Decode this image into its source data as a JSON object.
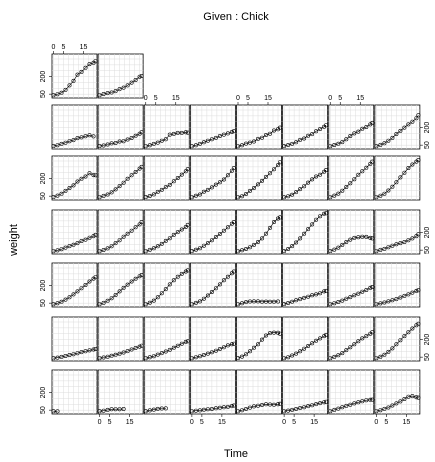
{
  "chart_data": {
    "type": "scatter",
    "title": "Given : Chick",
    "xlabel": "Time",
    "ylabel": "weight",
    "x_ticks": [
      "0",
      "5",
      "15"
    ],
    "y_ticks": [
      "50",
      "200"
    ],
    "x_range": [
      0,
      21
    ],
    "y_range": [
      30,
      380
    ],
    "grid": true,
    "x": [
      0,
      2,
      4,
      6,
      8,
      10,
      12,
      14,
      16,
      18,
      20,
      21
    ],
    "panels": [
      {
        "row": 0,
        "col": 0,
        "weight": [
          40,
          50,
          62,
          86,
          125,
          163,
          217,
          240,
          275,
          307,
          318,
          331
        ]
      },
      {
        "row": 0,
        "col": 1,
        "weight": [
          41,
          51,
          59,
          64,
          76,
          93,
          106,
          125,
          149,
          171,
          199,
          205
        ]
      },
      {
        "row": 1,
        "col": 0,
        "weight": [
          42,
          50,
          61,
          71,
          84,
          93,
          110,
          116,
          126,
          134,
          125
        ]
      },
      {
        "row": 1,
        "col": 1,
        "weight": [
          42,
          47,
          56,
          65,
          68,
          81,
          84,
          98,
          111,
          130,
          148,
          160
        ]
      },
      {
        "row": 1,
        "col": 2,
        "weight": [
          41,
          49,
          61,
          72,
          88,
          100,
          140,
          146,
          155,
          155,
          160,
          157
        ]
      },
      {
        "row": 1,
        "col": 3,
        "weight": [
          40,
          49,
          61,
          74,
          88,
          101,
          112,
          128,
          140,
          150,
          162,
          170
        ]
      },
      {
        "row": 1,
        "col": 4,
        "weight": [
          41,
          49,
          63,
          72,
          81,
          103,
          114,
          137,
          148,
          175,
          185,
          200
        ]
      },
      {
        "row": 1,
        "col": 5,
        "weight": [
          42,
          51,
          61,
          74,
          95,
          107,
          130,
          144,
          168,
          188,
          207,
          220
        ]
      },
      {
        "row": 1,
        "col": 6,
        "weight": [
          41,
          51,
          62,
          76,
          100,
          128,
          150,
          166,
          190,
          205,
          227,
          240
        ]
      },
      {
        "row": 1,
        "col": 7,
        "weight": [
          40,
          52,
          66,
          88,
          112,
          145,
          172,
          200,
          227,
          250,
          280,
          305
        ]
      },
      {
        "row": 2,
        "col": 0,
        "weight": [
          42,
          55,
          70,
          95,
          120,
          142,
          175,
          198,
          218,
          245,
          230,
          229
        ]
      },
      {
        "row": 2,
        "col": 1,
        "weight": [
          41,
          52,
          64,
          82,
          108,
          136,
          165,
          198,
          228,
          256,
          285,
          300
        ]
      },
      {
        "row": 2,
        "col": 2,
        "weight": [
          42,
          51,
          65,
          86,
          103,
          127,
          146,
          177,
          205,
          234,
          262,
          281
        ]
      },
      {
        "row": 2,
        "col": 3,
        "weight": [
          41,
          53,
          64,
          87,
          103,
          125,
          149,
          168,
          192,
          228,
          267,
          290
        ]
      },
      {
        "row": 2,
        "col": 4,
        "weight": [
          41,
          50,
          68,
          95,
          120,
          150,
          180,
          214,
          245,
          280,
          315,
          340
        ]
      },
      {
        "row": 2,
        "col": 5,
        "weight": [
          40,
          50,
          62,
          85,
          110,
          135,
          166,
          193,
          218,
          232,
          258,
          273
        ]
      },
      {
        "row": 2,
        "col": 6,
        "weight": [
          41,
          55,
          72,
          97,
          128,
          160,
          195,
          232,
          262,
          292,
          325,
          345
        ]
      },
      {
        "row": 2,
        "col": 7,
        "weight": [
          41,
          54,
          71,
          98,
          130,
          168,
          210,
          250,
          290,
          320,
          345,
          358
        ]
      },
      {
        "row": 3,
        "col": 0,
        "weight": [
          41,
          48,
          58,
          72,
          85,
          96,
          110,
          128,
          140,
          156,
          170,
          180
        ]
      },
      {
        "row": 3,
        "col": 1,
        "weight": [
          41,
          51,
          65,
          84,
          110,
          135,
          165,
          190,
          216,
          245,
          270,
          290
        ]
      },
      {
        "row": 3,
        "col": 2,
        "weight": [
          41,
          52,
          66,
          83,
          103,
          129,
          152,
          180,
          204,
          226,
          248,
          266
        ]
      },
      {
        "row": 3,
        "col": 3,
        "weight": [
          42,
          53,
          67,
          88,
          110,
          135,
          162,
          188,
          215,
          245,
          275,
          290
        ]
      },
      {
        "row": 3,
        "col": 4,
        "weight": [
          41,
          49,
          60,
          75,
          95,
          120,
          150,
          190,
          240,
          290,
          320,
          330
        ]
      },
      {
        "row": 3,
        "col": 5,
        "weight": [
          42,
          60,
          85,
          115,
          150,
          190,
          230,
          270,
          310,
          340,
          360,
          365
        ]
      },
      {
        "row": 3,
        "col": 6,
        "weight": [
          42,
          55,
          72,
          95,
          120,
          140,
          155,
          160,
          165,
          163,
          155,
          150
        ]
      },
      {
        "row": 3,
        "col": 7,
        "weight": [
          41,
          52,
          61,
          75,
          88,
          100,
          110,
          120,
          135,
          150,
          170,
          185
        ]
      },
      {
        "row": 4,
        "col": 0,
        "weight": [
          40,
          49,
          62,
          80,
          100,
          125,
          150,
          178,
          205,
          235,
          260,
          272
        ]
      },
      {
        "row": 4,
        "col": 1,
        "weight": [
          41,
          52,
          70,
          92,
          120,
          150,
          180,
          208,
          235,
          258,
          280,
          290
        ]
      },
      {
        "row": 4,
        "col": 2,
        "weight": [
          41,
          53,
          72,
          100,
          135,
          170,
          210,
          245,
          275,
          300,
          320,
          330
        ]
      },
      {
        "row": 4,
        "col": 3,
        "weight": [
          41,
          52,
          65,
          88,
          115,
          145,
          178,
          210,
          245,
          275,
          305,
          320
        ]
      },
      {
        "row": 4,
        "col": 4,
        "weight": [
          41,
          49,
          59,
          64,
          65,
          65,
          62,
          63,
          62,
          62,
          64
        ]
      },
      {
        "row": 4,
        "col": 5,
        "weight": [
          42,
          51,
          62,
          74,
          85,
          95,
          105,
          117,
          125,
          135,
          150,
          155
        ]
      },
      {
        "row": 4,
        "col": 6,
        "weight": [
          41,
          50,
          60,
          72,
          88,
          102,
          118,
          132,
          148,
          162,
          180,
          188
        ]
      },
      {
        "row": 4,
        "col": 7,
        "weight": [
          41,
          48,
          56,
          65,
          74,
          85,
          98,
          112,
          125,
          140,
          155,
          160
        ]
      },
      {
        "row": 5,
        "col": 0,
        "weight": [
          40,
          46,
          52,
          60,
          68,
          75,
          84,
          93,
          100,
          108,
          115,
          120
        ]
      },
      {
        "row": 5,
        "col": 1,
        "weight": [
          41,
          47,
          54,
          62,
          70,
          79,
          90,
          102,
          115,
          128,
          140,
          148
        ]
      },
      {
        "row": 5,
        "col": 2,
        "weight": [
          41,
          49,
          58,
          72,
          85,
          98,
          112,
          130,
          148,
          165,
          180,
          185
        ]
      },
      {
        "row": 5,
        "col": 3,
        "weight": [
          41,
          50,
          58,
          68,
          80,
          92,
          105,
          120,
          135,
          150,
          160,
          165
        ]
      },
      {
        "row": 5,
        "col": 4,
        "weight": [
          42,
          55,
          75,
          100,
          130,
          160,
          200,
          235,
          255,
          260,
          258,
          250
        ]
      },
      {
        "row": 5,
        "col": 5,
        "weight": [
          41,
          50,
          64,
          80,
          100,
          122,
          145,
          168,
          190,
          210,
          230,
          240
        ]
      },
      {
        "row": 5,
        "col": 6,
        "weight": [
          41,
          52,
          66,
          85,
          110,
          135,
          160,
          185,
          210,
          230,
          250,
          262
        ]
      },
      {
        "row": 5,
        "col": 7,
        "weight": [
          41,
          53,
          70,
          95,
          125,
          160,
          195,
          230,
          262,
          295,
          322,
          335
        ]
      },
      {
        "row": 6,
        "col": 0,
        "weight": [
          40,
          39
        ]
      },
      {
        "row": 6,
        "col": 1,
        "weight": [
          40,
          45,
          52,
          57,
          58,
          58,
          60
        ]
      },
      {
        "row": 6,
        "col": 2,
        "weight": [
          40,
          48,
          55,
          61,
          64,
          65
        ]
      },
      {
        "row": 6,
        "col": 3,
        "weight": [
          41,
          45,
          48,
          53,
          58,
          60,
          66,
          70,
          74,
          78,
          85,
          90
        ]
      },
      {
        "row": 6,
        "col": 4,
        "weight": [
          41,
          50,
          60,
          72,
          82,
          88,
          94,
          100,
          98,
          96,
          100,
          104
        ]
      },
      {
        "row": 6,
        "col": 5,
        "weight": [
          41,
          46,
          52,
          60,
          68,
          75,
          85,
          92,
          102,
          110,
          118,
          122
        ]
      },
      {
        "row": 6,
        "col": 6,
        "weight": [
          41,
          52,
          63,
          74,
          86,
          97,
          108,
          117,
          126,
          135,
          138,
          140
        ]
      },
      {
        "row": 6,
        "col": 7,
        "weight": [
          41,
          50,
          61,
          73,
          90,
          108,
          125,
          145,
          165,
          170,
          160,
          157
        ]
      }
    ]
  }
}
